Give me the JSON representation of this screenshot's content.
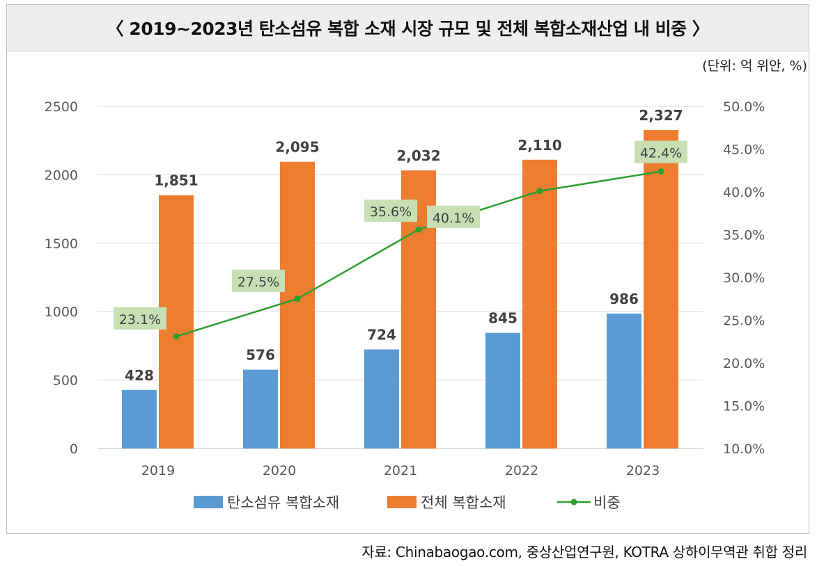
{
  "header": {
    "title": "〈 2019~2023년 탄소섬유 복합 소재 시장 규모 및 전체 복합소재산업 내 비중 〉"
  },
  "unit_note": "(단위: 억 위안, %)",
  "source_note": "자료: Chinabaogao.com, 중상산업연구원, KOTRA 상하이무역관 취합 정리",
  "colors": {
    "bar1": "#5b9bd5",
    "bar2": "#ed7d31",
    "line": "#2ca02c",
    "label_bg": "#c6e0b4"
  },
  "chart_data": {
    "type": "bar",
    "categories": [
      "2019",
      "2020",
      "2021",
      "2022",
      "2023"
    ],
    "series": [
      {
        "name": "탄소섬유 복합소재",
        "values": [
          428,
          576,
          724,
          845,
          986
        ],
        "labels": [
          "428",
          "576",
          "724",
          "845",
          "986"
        ],
        "axis": "left",
        "kind": "bar"
      },
      {
        "name": "전체 복합소재",
        "values": [
          1851,
          2095,
          2032,
          2110,
          2327
        ],
        "labels": [
          "1,851",
          "2,095",
          "2,032",
          "2,110",
          "2,327"
        ],
        "axis": "left",
        "kind": "bar"
      },
      {
        "name": "비중",
        "values": [
          23.1,
          27.5,
          35.6,
          40.1,
          42.4
        ],
        "labels": [
          "23.1%",
          "27.5%",
          "35.6%",
          "40.1%",
          "42.4%"
        ],
        "axis": "right",
        "kind": "line"
      }
    ],
    "y_left": {
      "ylim": [
        0,
        2500
      ],
      "ticks": [
        "0",
        "500",
        "1000",
        "1500",
        "2000",
        "2500"
      ]
    },
    "y_right": {
      "ylim": [
        10,
        50
      ],
      "ticks": [
        "10.0%",
        "15.0%",
        "20.0%",
        "25.0%",
        "30.0%",
        "35.0%",
        "40.0%",
        "45.0%",
        "50.0%"
      ]
    },
    "legend_position": "bottom",
    "grid": true
  }
}
